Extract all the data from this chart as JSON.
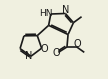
{
  "bg_color": "#f0f0e0",
  "bond_color": "#1a1a1a",
  "bond_width": 1.2,
  "font_size": 6.5,
  "fig_width": 1.08,
  "fig_height": 0.79,
  "dpi": 100,
  "xlim": [
    0,
    10
  ],
  "ylim": [
    0,
    7.3
  ]
}
